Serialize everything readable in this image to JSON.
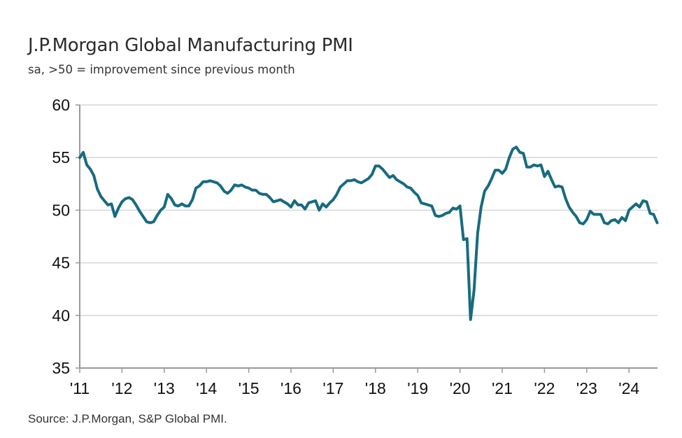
{
  "chart_data": {
    "type": "line",
    "title": "J.P.Morgan Global Manufacturing PMI",
    "subtitle": "sa, >50 = improvement since previous month",
    "source": "Source: J.P.Morgan, S&P Global PMI.",
    "xlabel": "",
    "ylabel": "",
    "ylim": [
      35,
      60
    ],
    "yticks": [
      "60",
      "55",
      "50",
      "45",
      "40",
      "35"
    ],
    "xticks": [
      "'11",
      "'12",
      "'13",
      "'14",
      "'15",
      "'16",
      "'17",
      "'18",
      "'19",
      "'20",
      "'21",
      "'22",
      "'23",
      "'24"
    ],
    "x_start": "2011-01",
    "x_frequency": "monthly",
    "grid": "horizontal",
    "line_color": "#176b80",
    "series": [
      {
        "values": [
          55.0,
          55.5,
          54.3,
          53.9,
          53.3,
          52.0,
          51.3,
          50.9,
          50.5,
          50.6,
          49.4,
          50.2,
          50.8,
          51.1,
          51.2,
          51.0,
          50.5,
          49.9,
          49.4,
          48.9,
          48.8,
          48.9,
          49.5,
          50.0,
          50.3,
          51.5,
          51.1,
          50.5,
          50.4,
          50.6,
          50.4,
          50.4,
          51.0,
          52.1,
          52.3,
          52.7,
          52.7,
          52.8,
          52.7,
          52.6,
          52.3,
          51.8,
          51.6,
          51.9,
          52.4,
          52.3,
          52.4,
          52.2,
          52.1,
          51.9,
          51.9,
          51.6,
          51.5,
          51.5,
          51.2,
          50.8,
          50.9,
          51.0,
          50.8,
          50.6,
          50.3,
          50.9,
          50.5,
          50.5,
          50.1,
          50.7,
          50.8,
          50.9,
          50.0,
          50.6,
          50.3,
          50.7,
          51.0,
          51.5,
          52.2,
          52.5,
          52.8,
          52.8,
          52.9,
          52.7,
          52.6,
          52.8,
          53.0,
          53.4,
          54.2,
          54.2,
          53.9,
          53.5,
          53.1,
          53.3,
          52.9,
          52.7,
          52.5,
          52.2,
          52.1,
          51.7,
          51.4,
          50.7,
          50.6,
          50.5,
          50.4,
          49.5,
          49.4,
          49.5,
          49.7,
          49.8,
          50.2,
          50.1,
          50.4,
          47.2,
          47.3,
          39.6,
          42.4,
          47.8,
          50.3,
          51.8,
          52.3,
          53.0,
          53.8,
          53.8,
          53.5,
          53.9,
          55.0,
          55.8,
          56.0,
          55.5,
          55.4,
          54.1,
          54.1,
          54.3,
          54.2,
          54.3,
          53.2,
          53.7,
          52.9,
          52.2,
          52.3,
          52.2,
          51.1,
          50.3,
          49.8,
          49.4,
          48.8,
          48.7,
          49.1,
          49.9,
          49.6,
          49.6,
          49.6,
          48.8,
          48.7,
          49.0,
          49.1,
          48.8,
          49.3,
          49.0,
          50.0,
          50.3,
          50.6,
          50.3,
          50.9,
          50.8,
          49.7,
          49.6,
          48.8
        ]
      }
    ]
  }
}
